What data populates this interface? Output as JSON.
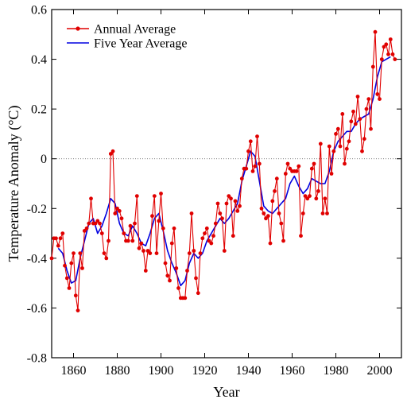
{
  "chart_data": {
    "type": "line",
    "xlabel": "Year",
    "ylabel": "Temperature Anomaly (°C)",
    "xlim": [
      1850,
      2010
    ],
    "ylim": [
      -0.8,
      0.6
    ],
    "xticks": [
      1860,
      1880,
      1900,
      1920,
      1940,
      1960,
      1980,
      2000
    ],
    "yticks": [
      0.6,
      0.4,
      0.2,
      0,
      -0.2,
      -0.4,
      -0.6,
      -0.8
    ],
    "ytick_labels": [
      "0.6",
      "0.4",
      "0.2",
      "0",
      "-0.2",
      "-0.4",
      "-0.6",
      "-0.8"
    ],
    "xtick_labels": [
      "1860",
      "1880",
      "1900",
      "1920",
      "1940",
      "1960",
      "1980",
      "2000"
    ],
    "reference_line": {
      "y": 0,
      "style": "dotted"
    },
    "legend_position": "top-left",
    "series": [
      {
        "name": "Annual Average",
        "color": "#e00000",
        "marker": "circle",
        "x": [
          1850,
          1851,
          1852,
          1853,
          1854,
          1855,
          1856,
          1857,
          1858,
          1859,
          1860,
          1861,
          1862,
          1863,
          1864,
          1865,
          1866,
          1867,
          1868,
          1869,
          1870,
          1871,
          1872,
          1873,
          1874,
          1875,
          1876,
          1877,
          1878,
          1879,
          1880,
          1881,
          1882,
          1883,
          1884,
          1885,
          1886,
          1887,
          1888,
          1889,
          1890,
          1891,
          1892,
          1893,
          1894,
          1895,
          1896,
          1897,
          1898,
          1899,
          1900,
          1901,
          1902,
          1903,
          1904,
          1905,
          1906,
          1907,
          1908,
          1909,
          1910,
          1911,
          1912,
          1913,
          1914,
          1915,
          1916,
          1917,
          1918,
          1919,
          1920,
          1921,
          1922,
          1923,
          1924,
          1925,
          1926,
          1927,
          1928,
          1929,
          1930,
          1931,
          1932,
          1933,
          1934,
          1935,
          1936,
          1937,
          1938,
          1939,
          1940,
          1941,
          1942,
          1943,
          1944,
          1945,
          1946,
          1947,
          1948,
          1949,
          1950,
          1951,
          1952,
          1953,
          1954,
          1955,
          1956,
          1957,
          1958,
          1959,
          1960,
          1961,
          1962,
          1963,
          1964,
          1965,
          1966,
          1967,
          1968,
          1969,
          1970,
          1971,
          1972,
          1973,
          1974,
          1975,
          1976,
          1977,
          1978,
          1979,
          1980,
          1981,
          1982,
          1983,
          1984,
          1985,
          1986,
          1987,
          1988,
          1989,
          1990,
          1991,
          1992,
          1993,
          1994,
          1995,
          1996,
          1997,
          1998,
          1999,
          2000,
          2001,
          2002,
          2003,
          2004,
          2005,
          2006,
          2007
        ],
        "values": [
          -0.4,
          -0.32,
          -0.32,
          -0.35,
          -0.32,
          -0.3,
          -0.43,
          -0.48,
          -0.52,
          -0.42,
          -0.38,
          -0.55,
          -0.61,
          -0.38,
          -0.44,
          -0.29,
          -0.28,
          -0.26,
          -0.16,
          -0.26,
          -0.26,
          -0.25,
          -0.26,
          -0.3,
          -0.38,
          -0.4,
          -0.33,
          0.02,
          0.03,
          -0.22,
          -0.2,
          -0.21,
          -0.24,
          -0.3,
          -0.33,
          -0.33,
          -0.27,
          -0.33,
          -0.26,
          -0.15,
          -0.36,
          -0.34,
          -0.37,
          -0.45,
          -0.37,
          -0.38,
          -0.23,
          -0.15,
          -0.38,
          -0.25,
          -0.14,
          -0.28,
          -0.42,
          -0.47,
          -0.49,
          -0.34,
          -0.28,
          -0.44,
          -0.52,
          -0.56,
          -0.56,
          -0.56,
          -0.45,
          -0.38,
          -0.22,
          -0.37,
          -0.48,
          -0.54,
          -0.38,
          -0.32,
          -0.3,
          -0.28,
          -0.33,
          -0.34,
          -0.31,
          -0.26,
          -0.18,
          -0.22,
          -0.24,
          -0.37,
          -0.18,
          -0.15,
          -0.16,
          -0.31,
          -0.17,
          -0.21,
          -0.19,
          -0.08,
          -0.04,
          -0.04,
          0.03,
          0.07,
          -0.05,
          -0.03,
          0.09,
          -0.02,
          -0.2,
          -0.22,
          -0.24,
          -0.23,
          -0.34,
          -0.17,
          -0.13,
          -0.08,
          -0.22,
          -0.26,
          -0.33,
          -0.06,
          -0.02,
          -0.04,
          -0.05,
          -0.05,
          -0.05,
          -0.03,
          -0.31,
          -0.22,
          -0.15,
          -0.16,
          -0.15,
          -0.04,
          -0.02,
          -0.16,
          -0.13,
          0.06,
          -0.22,
          -0.16,
          -0.22,
          0.05,
          -0.06,
          0.03,
          0.1,
          0.12,
          0.05,
          0.18,
          -0.02,
          0.04,
          0.07,
          0.15,
          0.19,
          0.14,
          0.25,
          0.16,
          0.03,
          0.08,
          0.2,
          0.24,
          0.12,
          0.37,
          0.51,
          0.26,
          0.24,
          0.4,
          0.45,
          0.46,
          0.42,
          0.48,
          0.42,
          0.4
        ]
      },
      {
        "name": "Five Year Average",
        "color": "#0000e0",
        "marker": "none",
        "x": [
          1853,
          1855,
          1857,
          1859,
          1861,
          1863,
          1865,
          1867,
          1869,
          1871,
          1873,
          1875,
          1877,
          1879,
          1881,
          1883,
          1885,
          1887,
          1889,
          1891,
          1893,
          1895,
          1897,
          1899,
          1901,
          1903,
          1905,
          1907,
          1909,
          1911,
          1913,
          1915,
          1917,
          1919,
          1921,
          1923,
          1925,
          1927,
          1929,
          1931,
          1933,
          1935,
          1937,
          1939,
          1941,
          1943,
          1945,
          1947,
          1949,
          1951,
          1953,
          1955,
          1957,
          1959,
          1961,
          1963,
          1965,
          1967,
          1969,
          1971,
          1973,
          1975,
          1977,
          1979,
          1981,
          1983,
          1985,
          1987,
          1989,
          1991,
          1993,
          1995,
          1997,
          1999,
          2001,
          2003,
          2005
        ],
        "values": [
          -0.36,
          -0.38,
          -0.45,
          -0.5,
          -0.49,
          -0.4,
          -0.33,
          -0.26,
          -0.24,
          -0.3,
          -0.27,
          -0.22,
          -0.16,
          -0.18,
          -0.26,
          -0.3,
          -0.31,
          -0.27,
          -0.3,
          -0.34,
          -0.35,
          -0.3,
          -0.24,
          -0.22,
          -0.29,
          -0.37,
          -0.42,
          -0.46,
          -0.51,
          -0.49,
          -0.42,
          -0.38,
          -0.4,
          -0.38,
          -0.33,
          -0.3,
          -0.27,
          -0.24,
          -0.26,
          -0.24,
          -0.21,
          -0.18,
          -0.09,
          -0.03,
          0.03,
          0.01,
          -0.09,
          -0.19,
          -0.21,
          -0.22,
          -0.2,
          -0.18,
          -0.16,
          -0.1,
          -0.07,
          -0.11,
          -0.14,
          -0.12,
          -0.08,
          -0.09,
          -0.1,
          -0.1,
          -0.05,
          0.03,
          0.07,
          0.09,
          0.11,
          0.11,
          0.14,
          0.16,
          0.17,
          0.18,
          0.24,
          0.33,
          0.39,
          0.4,
          0.41
        ]
      }
    ]
  }
}
